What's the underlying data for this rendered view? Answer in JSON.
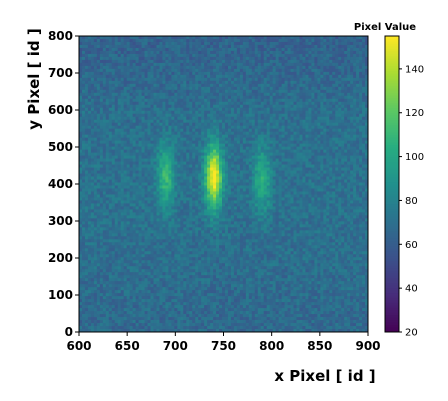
{
  "chart_data": {
    "type": "heatmap",
    "title": "",
    "xlabel": "x Pixel [ id ]",
    "ylabel": "y Pixel [ id ]",
    "xlim": [
      600,
      900
    ],
    "ylim": [
      0,
      800
    ],
    "x_ticks": [
      600,
      650,
      700,
      750,
      800,
      850,
      900
    ],
    "y_ticks": [
      0,
      100,
      200,
      300,
      400,
      500,
      600,
      700,
      800
    ],
    "colormap": "viridis",
    "colorbar": {
      "label": "Pixel Value",
      "range": [
        20,
        155
      ],
      "ticks": [
        20,
        40,
        60,
        80,
        100,
        120,
        140
      ]
    },
    "background_level": 65,
    "pattern": "interference-like vertical fringes",
    "fringes": [
      {
        "x_center": 740,
        "y_center": 420,
        "peak_value": 150
      },
      {
        "x_center": 690,
        "y_center": 420,
        "peak_value": 105
      },
      {
        "x_center": 790,
        "y_center": 410,
        "peak_value": 100
      }
    ],
    "grid": false
  }
}
